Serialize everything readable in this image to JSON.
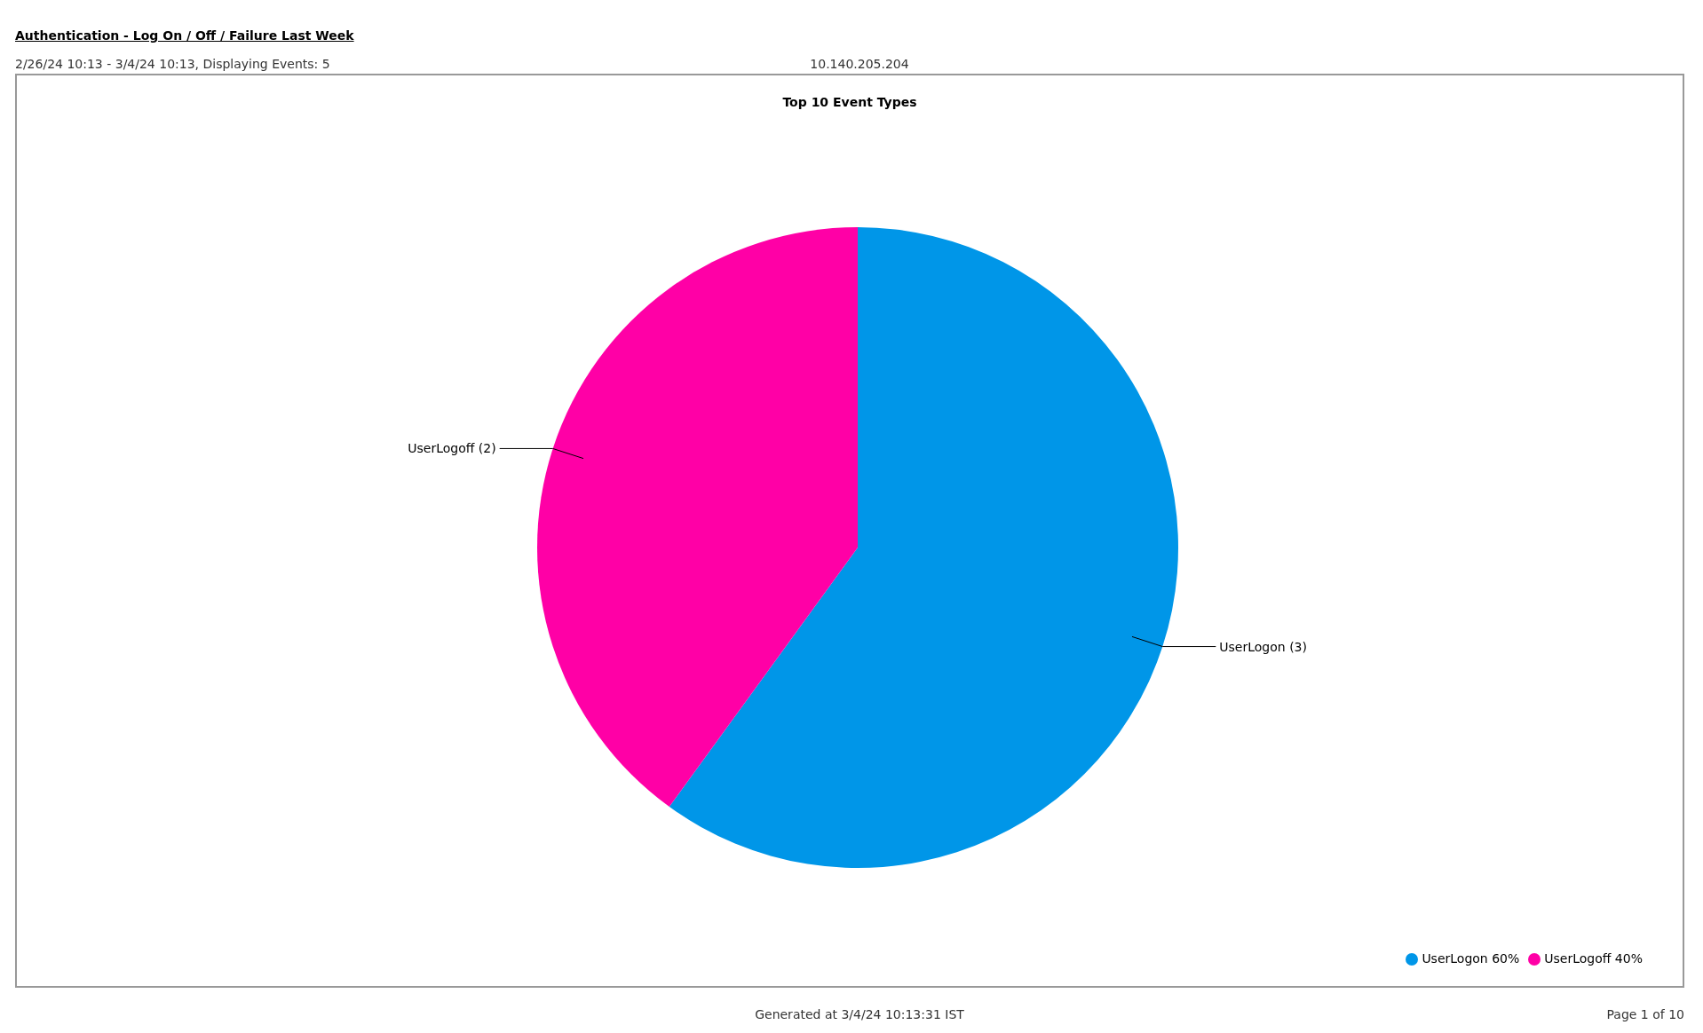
{
  "chart_data": {
    "type": "pie",
    "title": "Top 10 Event Types",
    "subtitle": "2/26/24 10:13 - 3/4/24 10:13, Displaying Events: 5",
    "annotations": [
      "Authentication - Log On / Off / Failure Last Week",
      "10.140.205.204",
      "Generated at 3/4/24 10:13:31 IST",
      "Page 1 of 10"
    ],
    "categories": [
      "UserLogon 60%",
      "UserLogoff 40%"
    ],
    "values": [
      3,
      2
    ],
    "value_labels": [
      "UserLogon (3)",
      "UserLogoff (2)"
    ],
    "colors": [
      "#0096e8",
      "#ff00a6"
    ],
    "legend": "bottom right"
  }
}
